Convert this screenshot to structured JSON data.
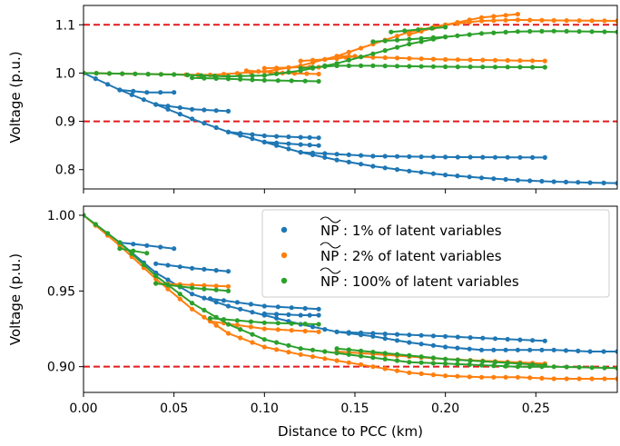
{
  "figure": {
    "xlabel": "Distance to PCC (km)",
    "x_tick_labels": [
      "0.00",
      "0.05",
      "0.10",
      "0.15",
      "0.20",
      "0.25"
    ],
    "colors": {
      "blue": "#1f77b4",
      "orange": "#ff7f0e",
      "green": "#2ca02c",
      "limit": "#e31a1c"
    }
  },
  "chart_data": [
    {
      "type": "line",
      "panel": "top",
      "xlabel": "",
      "ylabel": "Voltage (p.u.)",
      "xlim": [
        0.0,
        0.295
      ],
      "ylim": [
        0.76,
        1.14
      ],
      "y_ticks": [
        "0.8",
        "0.9",
        "1.0",
        "1.1"
      ],
      "y_tick_values": [
        0.8,
        0.9,
        1.0,
        1.1
      ],
      "limits": [
        0.9,
        1.1
      ],
      "series": [
        {
          "color": "blue",
          "lines": [
            {
              "x": [
                0.0,
                0.02,
                0.04,
                0.06,
                0.08,
                0.1,
                0.12,
                0.14,
                0.16,
                0.18,
                0.2,
                0.22,
                0.24,
                0.26,
                0.28,
                0.295
              ],
              "y": [
                1.0,
                0.965,
                0.935,
                0.905,
                0.878,
                0.857,
                0.836,
                0.82,
                0.807,
                0.797,
                0.789,
                0.783,
                0.778,
                0.775,
                0.773,
                0.772
              ]
            },
            {
              "x": [
                0.02,
                0.035,
                0.05
              ],
              "y": [
                0.965,
                0.96,
                0.96
              ]
            },
            {
              "x": [
                0.04,
                0.06,
                0.08
              ],
              "y": [
                0.935,
                0.925,
                0.921
              ]
            },
            {
              "x": [
                0.08,
                0.1,
                0.12,
                0.13
              ],
              "y": [
                0.878,
                0.87,
                0.867,
                0.866
              ]
            },
            {
              "x": [
                0.1,
                0.12,
                0.13
              ],
              "y": [
                0.857,
                0.852,
                0.85
              ]
            },
            {
              "x": [
                0.12,
                0.16,
                0.2,
                0.255
              ],
              "y": [
                0.836,
                0.828,
                0.826,
                0.825
              ]
            }
          ]
        },
        {
          "color": "orange",
          "lines": [
            {
              "x": [
                0.0,
                0.05,
                0.07,
                0.1,
                0.12,
                0.14,
                0.16,
                0.18,
                0.2,
                0.22,
                0.24,
                0.26,
                0.295
              ],
              "y": [
                1.0,
                0.997,
                0.996,
                1.003,
                1.015,
                1.035,
                1.06,
                1.085,
                1.1,
                1.108,
                1.11,
                1.109,
                1.108
              ]
            },
            {
              "x": [
                0.09,
                0.11,
                0.13
              ],
              "y": [
                1.005,
                1.0,
                0.998
              ]
            },
            {
              "x": [
                0.1,
                0.12,
                0.13
              ],
              "y": [
                1.01,
                1.012,
                1.012
              ]
            },
            {
              "x": [
                0.12,
                0.14,
                0.15
              ],
              "y": [
                1.025,
                1.03,
                1.035
              ]
            },
            {
              "x": [
                0.14,
                0.2,
                0.255
              ],
              "y": [
                1.035,
                1.028,
                1.025
              ]
            },
            {
              "x": [
                0.18,
                0.2,
                0.22,
                0.24
              ],
              "y": [
                1.08,
                1.1,
                1.115,
                1.122
              ]
            }
          ]
        },
        {
          "color": "green",
          "lines": [
            {
              "x": [
                0.0,
                0.05,
                0.08,
                0.1,
                0.12,
                0.14,
                0.16,
                0.18,
                0.2,
                0.22,
                0.24,
                0.26,
                0.295
              ],
              "y": [
                1.0,
                0.997,
                0.993,
                0.995,
                1.005,
                1.02,
                1.04,
                1.06,
                1.075,
                1.082,
                1.086,
                1.087,
                1.085
              ]
            },
            {
              "x": [
                0.06,
                0.08,
                0.1,
                0.13
              ],
              "y": [
                0.99,
                0.988,
                0.985,
                0.983
              ]
            },
            {
              "x": [
                0.12,
                0.14,
                0.16,
                0.2,
                0.255
              ],
              "y": [
                1.01,
                1.015,
                1.015,
                1.013,
                1.012
              ]
            },
            {
              "x": [
                0.16,
                0.18,
                0.2
              ],
              "y": [
                1.065,
                1.07,
                1.075
              ]
            },
            {
              "x": [
                0.17,
                0.2
              ],
              "y": [
                1.085,
                1.095
              ]
            }
          ]
        }
      ]
    },
    {
      "type": "line",
      "panel": "bottom",
      "xlabel": "Distance to PCC (km)",
      "ylabel": "Voltage (p.u.)",
      "xlim": [
        0.0,
        0.295
      ],
      "ylim": [
        0.883,
        1.006
      ],
      "y_ticks": [
        "0.90",
        "0.95",
        "1.00"
      ],
      "y_tick_values": [
        0.9,
        0.95,
        1.0
      ],
      "limits": [
        0.9
      ],
      "legend": {
        "position": "upper right",
        "entries": [
          {
            "label": "NP : 1% of latent variables",
            "color": "blue"
          },
          {
            "label": "NP : 2% of latent variables",
            "color": "orange"
          },
          {
            "label": "NP : 100% of latent variables",
            "color": "green"
          }
        ]
      },
      "series": [
        {
          "color": "blue",
          "lines": [
            {
              "x": [
                0.0,
                0.02,
                0.04,
                0.06,
                0.08,
                0.1,
                0.12,
                0.14,
                0.16,
                0.18,
                0.2,
                0.22,
                0.24,
                0.26,
                0.28,
                0.295
              ],
              "y": [
                1.0,
                0.982,
                0.962,
                0.948,
                0.94,
                0.934,
                0.928,
                0.923,
                0.92,
                0.916,
                0.913,
                0.911,
                0.911,
                0.911,
                0.91,
                0.91
              ]
            },
            {
              "x": [
                0.02,
                0.035,
                0.05
              ],
              "y": [
                0.982,
                0.98,
                0.978
              ]
            },
            {
              "x": [
                0.04,
                0.06,
                0.08
              ],
              "y": [
                0.968,
                0.965,
                0.963
              ]
            },
            {
              "x": [
                0.07,
                0.1,
                0.13
              ],
              "y": [
                0.945,
                0.94,
                0.938
              ]
            },
            {
              "x": [
                0.1,
                0.12,
                0.13
              ],
              "y": [
                0.935,
                0.934,
                0.934
              ]
            },
            {
              "x": [
                0.14,
                0.2,
                0.255
              ],
              "y": [
                0.923,
                0.92,
                0.917
              ]
            }
          ]
        },
        {
          "color": "orange",
          "lines": [
            {
              "x": [
                0.0,
                0.02,
                0.04,
                0.06,
                0.08,
                0.1,
                0.12,
                0.14,
                0.16,
                0.18,
                0.2,
                0.22,
                0.24,
                0.26,
                0.295
              ],
              "y": [
                1.0,
                0.98,
                0.958,
                0.938,
                0.922,
                0.913,
                0.908,
                0.904,
                0.9,
                0.896,
                0.894,
                0.893,
                0.893,
                0.892,
                0.892
              ]
            },
            {
              "x": [
                0.04,
                0.06,
                0.08
              ],
              "y": [
                0.955,
                0.954,
                0.953
              ]
            },
            {
              "x": [
                0.07,
                0.1,
                0.13
              ],
              "y": [
                0.93,
                0.925,
                0.923
              ]
            },
            {
              "x": [
                0.14,
                0.2,
                0.255
              ],
              "y": [
                0.91,
                0.905,
                0.902
              ]
            }
          ]
        },
        {
          "color": "green",
          "lines": [
            {
              "x": [
                0.0,
                0.02,
                0.04,
                0.06,
                0.08,
                0.1,
                0.12,
                0.14,
                0.16,
                0.18,
                0.2,
                0.22,
                0.24,
                0.26,
                0.295
              ],
              "y": [
                1.0,
                0.982,
                0.96,
                0.942,
                0.928,
                0.918,
                0.912,
                0.909,
                0.906,
                0.903,
                0.902,
                0.901,
                0.9,
                0.9,
                0.899
              ]
            },
            {
              "x": [
                0.02,
                0.035
              ],
              "y": [
                0.978,
                0.975
              ]
            },
            {
              "x": [
                0.04,
                0.06,
                0.08
              ],
              "y": [
                0.955,
                0.952,
                0.95
              ]
            },
            {
              "x": [
                0.07,
                0.1,
                0.13
              ],
              "y": [
                0.932,
                0.929,
                0.928
              ]
            },
            {
              "x": [
                0.14,
                0.2,
                0.255
              ],
              "y": [
                0.912,
                0.905,
                0.901
              ]
            }
          ]
        }
      ]
    }
  ]
}
